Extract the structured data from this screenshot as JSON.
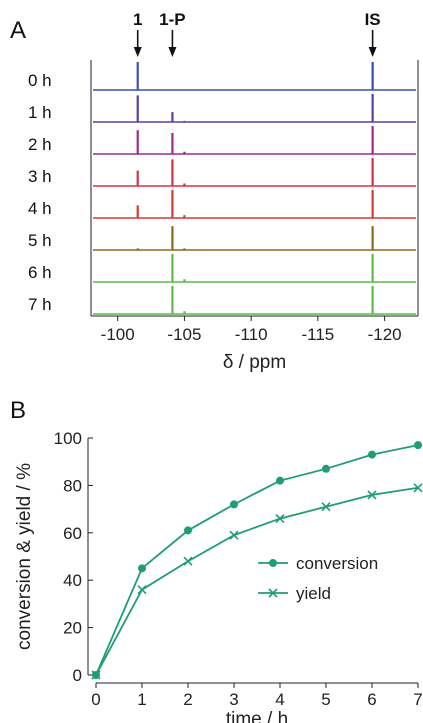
{
  "chart_data": [
    {
      "panel": "A",
      "type": "line",
      "xlabel": "δ / ppm",
      "xlim": [
        -98,
        -122.5
      ],
      "x_ticks": [
        -100,
        -105,
        -110,
        -115,
        -120
      ],
      "tick_labels": [
        "-100",
        "-105",
        "-110",
        "-115",
        "-120"
      ],
      "peaks": [
        {
          "label": "1",
          "x": -101.5
        },
        {
          "label": "1-P",
          "x": -104.1
        },
        {
          "label": "IS",
          "x": -119.1
        }
      ],
      "series": [
        {
          "name": "0 h",
          "color": "#3b4fb8",
          "heights": [
            1.0,
            0.0,
            0.0,
            1.0
          ]
        },
        {
          "name": "1 h",
          "color": "#5a3fa0",
          "heights": [
            0.95,
            0.35,
            0.04,
            1.0
          ]
        },
        {
          "name": "2 h",
          "color": "#9b2d8a",
          "heights": [
            0.85,
            0.75,
            0.08,
            1.0
          ]
        },
        {
          "name": "3 h",
          "color": "#d63044",
          "heights": [
            0.55,
            0.95,
            0.09,
            1.0
          ]
        },
        {
          "name": "4 h",
          "color": "#d63a30",
          "heights": [
            0.45,
            1.0,
            0.1,
            1.0
          ]
        },
        {
          "name": "5 h",
          "color": "#8a6a1e",
          "heights": [
            0.06,
            0.85,
            0.06,
            0.85
          ]
        },
        {
          "name": "6 h",
          "color": "#5dba4a",
          "heights": [
            0.0,
            1.0,
            0.1,
            1.0
          ]
        },
        {
          "name": "7 h",
          "color": "#5dba4a",
          "heights": [
            0.0,
            1.0,
            0.1,
            1.0
          ]
        }
      ],
      "minor_peak_x": -105.0
    },
    {
      "panel": "B",
      "type": "line",
      "xlabel": "time / h",
      "ylabel": "conversion & yield / %",
      "xlim": [
        0,
        7
      ],
      "ylim": [
        0,
        100
      ],
      "x": [
        0,
        1,
        2,
        3,
        4,
        5,
        6,
        7
      ],
      "y_ticks": [
        0,
        20,
        40,
        60,
        80,
        100
      ],
      "color": "#1f9e6e",
      "legend": "right-center",
      "series": [
        {
          "name": "conversion",
          "marker": "filled-circle",
          "values": [
            0,
            45,
            61,
            72,
            82,
            87,
            93,
            97
          ]
        },
        {
          "name": "yield",
          "marker": "x",
          "values": [
            0,
            36,
            48,
            59,
            66,
            71,
            76,
            79
          ]
        }
      ]
    }
  ]
}
